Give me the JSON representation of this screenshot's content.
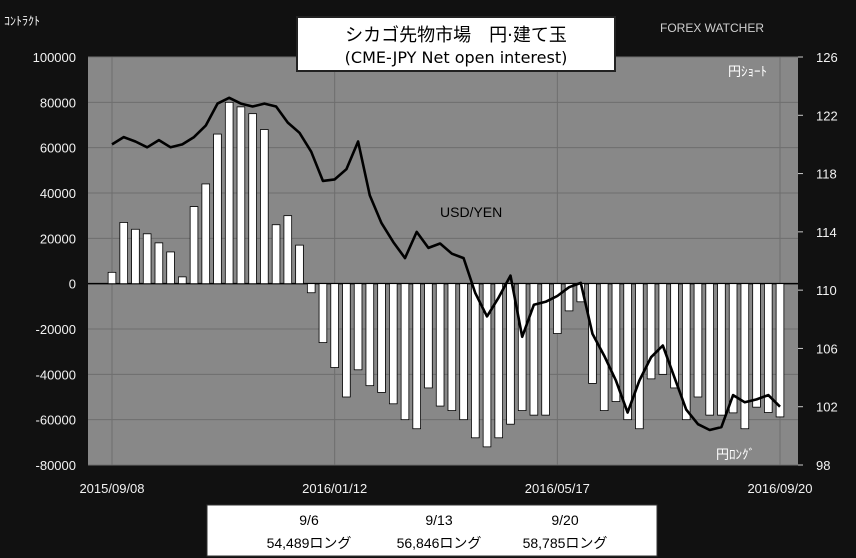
{
  "title": {
    "line1": "シカゴ先物市場　円·建て玉",
    "line2": "(CME-JPY Net open interest)"
  },
  "brand": "FOREX WATCHER",
  "left_axis_unit": "ｺﾝﾄﾗｸﾄ",
  "inset_labels": {
    "top": "円ｼｮｰﾄ",
    "bottom": "円ﾛﾝｸﾞ"
  },
  "series_label": "USD/YEN",
  "footer": {
    "dates": [
      "9/6",
      "9/13",
      "9/20"
    ],
    "values": [
      "54,489ロング",
      "56,846ロング",
      "58,785ロング"
    ]
  },
  "chart_data": {
    "type": "bar",
    "x_ticks": [
      "2015/09/08",
      "2016/01/12",
      "2016/05/17",
      "2016/09/20"
    ],
    "y_left": {
      "min": -80000,
      "max": 100000,
      "ticks": [
        "100000",
        "80000",
        "60000",
        "40000",
        "20000",
        "0",
        "-20000",
        "-40000",
        "-60000",
        "-80000"
      ]
    },
    "y_right": {
      "min": 98,
      "max": 126,
      "ticks": [
        "126",
        "122",
        "118",
        "114",
        "110",
        "106",
        "102",
        "98"
      ]
    },
    "bar_series": {
      "values": [
        5000,
        27000,
        24000,
        22000,
        18000,
        14000,
        3000,
        34000,
        44000,
        66000,
        80000,
        78000,
        75000,
        68000,
        26000,
        30000,
        17000,
        -4000,
        -26000,
        -37000,
        -50000,
        -38000,
        -45000,
        -48000,
        -53000,
        -60000,
        -64000,
        -46000,
        -54000,
        -56000,
        -60000,
        -68000,
        -72000,
        -68000,
        -62000,
        -56000,
        -58000,
        -58000,
        -22000,
        -12000,
        -8000,
        -44000,
        -56000,
        -52000,
        -60000,
        -64000,
        -42000,
        -40000,
        -46000,
        -60000,
        -50000,
        -58000,
        -58000,
        -57000,
        -64000,
        -54489,
        -56846,
        -58785
      ]
    },
    "line_series": {
      "name": "USD/YEN",
      "points": [
        [
          0,
          120.0
        ],
        [
          1,
          120.5
        ],
        [
          2,
          120.2
        ],
        [
          3,
          119.8
        ],
        [
          4,
          120.3
        ],
        [
          5,
          119.8
        ],
        [
          6,
          120.0
        ],
        [
          7,
          120.5
        ],
        [
          8,
          121.3
        ],
        [
          9,
          122.8
        ],
        [
          10,
          123.2
        ],
        [
          11,
          122.8
        ],
        [
          12,
          122.6
        ],
        [
          13,
          122.8
        ],
        [
          14,
          122.6
        ],
        [
          15,
          121.5
        ],
        [
          16,
          120.8
        ],
        [
          17,
          119.5
        ],
        [
          18,
          117.5
        ],
        [
          19,
          117.6
        ],
        [
          20,
          118.3
        ],
        [
          21,
          120.2
        ],
        [
          22,
          116.5
        ],
        [
          23,
          114.6
        ],
        [
          24,
          113.3
        ],
        [
          25,
          112.2
        ],
        [
          26,
          114.0
        ],
        [
          27,
          112.9
        ],
        [
          28,
          113.2
        ],
        [
          29,
          112.5
        ],
        [
          30,
          112.2
        ],
        [
          31,
          109.8
        ],
        [
          32,
          108.2
        ],
        [
          33,
          109.5
        ],
        [
          34,
          111.0
        ],
        [
          35,
          106.8
        ],
        [
          36,
          109.0
        ],
        [
          37,
          109.2
        ],
        [
          38,
          109.6
        ],
        [
          39,
          110.2
        ],
        [
          40,
          110.5
        ],
        [
          41,
          107.0
        ],
        [
          42,
          105.5
        ],
        [
          43,
          103.8
        ],
        [
          44,
          101.6
        ],
        [
          45,
          103.8
        ],
        [
          46,
          105.4
        ],
        [
          47,
          106.2
        ],
        [
          48,
          104.0
        ],
        [
          49,
          101.8
        ],
        [
          50,
          100.8
        ],
        [
          51,
          100.4
        ],
        [
          52,
          100.6
        ],
        [
          53,
          102.8
        ],
        [
          54,
          102.3
        ],
        [
          55,
          102.5
        ],
        [
          56,
          102.8
        ],
        [
          57,
          102.0
        ]
      ]
    },
    "grid": true
  }
}
